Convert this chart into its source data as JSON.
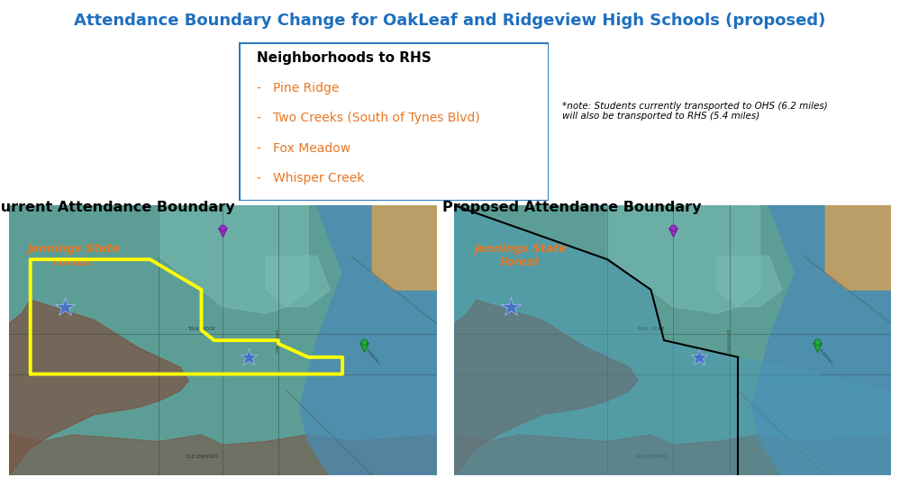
{
  "title": "Attendance Boundary Change for OakLeaf and Ridgeview High Schools (proposed)",
  "title_color": "#1F6FBF",
  "title_fontsize": 13,
  "box_title": "Neighborhoods to RHS",
  "box_items": [
    "Pine Ridge",
    "Two Creeks (South of Tynes Blvd)",
    "Fox Meadow",
    "Whisper Creek"
  ],
  "box_item_color": "#E87722",
  "box_border_color": "#2B7BBF",
  "note_text": "*note: Students currently transported to OHS (6.2 miles)\nwill also be transported to RHS (5.4 miles)",
  "left_map_title": "Current Attendance Boundary",
  "right_map_title": "Proposed Attendance Boundary",
  "background_color": "#ffffff",
  "forest_label_color": "#E87722",
  "forest_label": "Jennings State\nForest",
  "yellow_outline_color": "#FFFF00",
  "map_teal": "#5C9E96",
  "map_teal_light": "#7BB8B0",
  "map_brown": "#8B6355",
  "map_brown_light": "#A07060",
  "map_blue": "#5BA0C0",
  "map_tan": "#C8A060",
  "star_color": "#4472C4",
  "purple_marker": "#8855BB",
  "green_marker": "#22AA44"
}
